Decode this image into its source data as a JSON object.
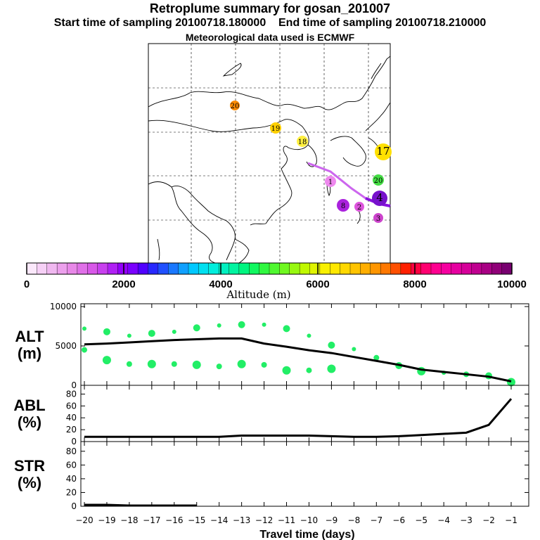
{
  "header": {
    "title": "Retroplume summary for gosan_201007",
    "start_label": "Start time of sampling 20100718.180000",
    "end_label": "End time of sampling 20100718.210000",
    "met_label": "Meteorological data used is ECMWF"
  },
  "colorbar": {
    "label": "Altitude (m)",
    "ticks": [
      "0",
      "2000",
      "4000",
      "6000",
      "8000",
      "10000"
    ]
  },
  "map": {
    "markers": [
      {
        "label": "20",
        "color": "#ff8c00"
      },
      {
        "label": "19",
        "color": "#ffd000"
      },
      {
        "label": "18",
        "color": "#ffef40"
      },
      {
        "label": "17",
        "color": "#ffe000"
      },
      {
        "label": "20",
        "color": "#44dd44"
      },
      {
        "label": "1",
        "color": "#ee88ee"
      },
      {
        "label": "2",
        "color": "#dd55dd"
      },
      {
        "label": "8",
        "color": "#aa22dd"
      },
      {
        "label": "3",
        "color": "#cc44cc"
      },
      {
        "label": "4",
        "color": "#7711cc"
      }
    ]
  },
  "chart_data": [
    {
      "type": "line",
      "name": "ALT",
      "ylabel": "ALT (m)",
      "ylabel_lines": [
        "ALT",
        "(m)"
      ],
      "ylim": [
        0,
        10000
      ],
      "yticks": [
        "0",
        "5000",
        "10000"
      ],
      "x": [
        -20,
        -19,
        -18,
        -17,
        -16,
        -15,
        -14,
        -13,
        -12,
        -11,
        -10,
        -9,
        -8,
        -7,
        -6,
        -5,
        -4,
        -3,
        -2,
        -1
      ],
      "values": [
        5200,
        5300,
        5450,
        5600,
        5750,
        5850,
        5950,
        5950,
        5300,
        4900,
        4450,
        4100,
        3600,
        3100,
        2600,
        2000,
        1700,
        1400,
        1100,
        500
      ],
      "scatter": {
        "x": [
          -20,
          -20,
          -19,
          -19,
          -18,
          -18,
          -17,
          -17,
          -16,
          -16,
          -15,
          -15,
          -14,
          -14,
          -13,
          -13,
          -12,
          -12,
          -11,
          -11,
          -10,
          -10,
          -9,
          -9,
          -8,
          -7,
          -6,
          -5,
          -4,
          -3,
          -2,
          -1
        ],
        "y": [
          7200,
          4500,
          6800,
          3200,
          6300,
          2700,
          6600,
          2700,
          6800,
          2700,
          7300,
          2600,
          7600,
          2400,
          7700,
          2700,
          7700,
          2600,
          7200,
          1900,
          6300,
          1900,
          5100,
          2100,
          4600,
          3500,
          2500,
          1800,
          1600,
          1400,
          1200,
          400
        ]
      }
    },
    {
      "type": "line",
      "name": "ABL",
      "ylabel": "ABL (%)",
      "ylabel_lines": [
        "ABL",
        "(%)"
      ],
      "ylim": [
        0,
        90
      ],
      "yticks": [
        "0",
        "20",
        "40",
        "60",
        "80"
      ],
      "x": [
        -20,
        -19,
        -18,
        -17,
        -16,
        -15,
        -14,
        -13,
        -12,
        -11,
        -10,
        -9,
        -8,
        -7,
        -6,
        -5,
        -4,
        -3,
        -2,
        -1
      ],
      "values": [
        8,
        8,
        8,
        8,
        8,
        8,
        8,
        10,
        10,
        10,
        10,
        9,
        8,
        8,
        9,
        11,
        13,
        15,
        28,
        72
      ]
    },
    {
      "type": "line",
      "name": "STR",
      "ylabel": "STR (%)",
      "ylabel_lines": [
        "STR",
        "(%)"
      ],
      "ylim": [
        0,
        90
      ],
      "yticks": [
        "0",
        "20",
        "40",
        "60",
        "80"
      ],
      "x": [
        -20,
        -19,
        -18,
        -17,
        -16,
        -15
      ],
      "values": [
        2,
        2,
        1,
        1,
        1,
        1
      ]
    }
  ],
  "xaxis": {
    "label": "Travel time (days)",
    "ticks": [
      "−20",
      "−19",
      "−18",
      "−17",
      "−16",
      "−15",
      "−14",
      "−13",
      "−12",
      "−11",
      "−10",
      "−9",
      "−8",
      "−7",
      "−6",
      "−5",
      "−4",
      "−3",
      "−2",
      "−1"
    ]
  }
}
